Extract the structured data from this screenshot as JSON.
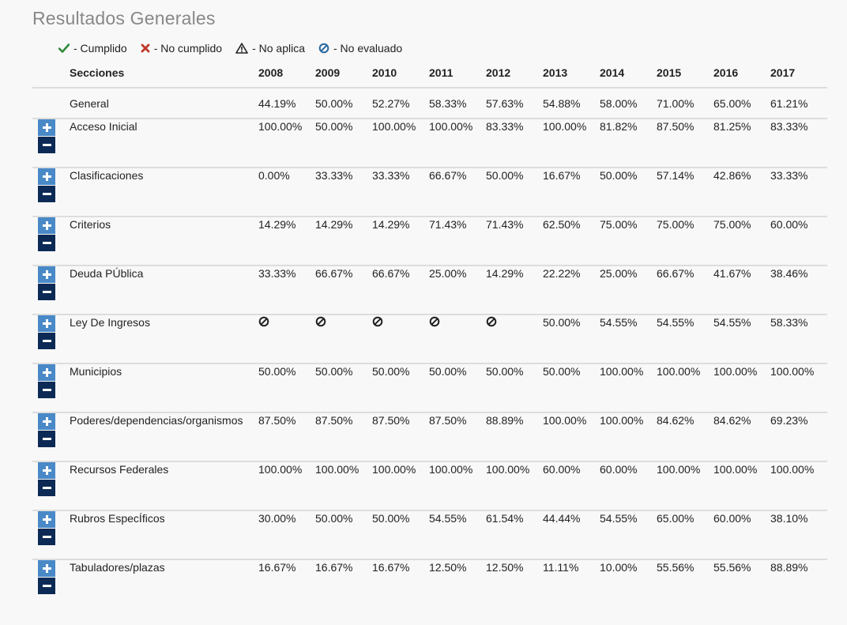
{
  "title": "Resultados Generales",
  "legend": [
    {
      "icon": "check-icon",
      "label": "- Cumplido",
      "color": "#2e8b3a"
    },
    {
      "icon": "cross-icon",
      "label": "- No cumplido",
      "color": "#c0392b"
    },
    {
      "icon": "warning-icon",
      "label": "- No aplica",
      "color": "#222222"
    },
    {
      "icon": "not-evaluated-icon",
      "label": "- No evaluado",
      "color": "#2a6a9e"
    }
  ],
  "table": {
    "section_header": "Secciones",
    "years": [
      "2008",
      "2009",
      "2010",
      "2011",
      "2012",
      "2013",
      "2014",
      "2015",
      "2016",
      "2017"
    ],
    "general": {
      "label": "General",
      "values": [
        "44.19%",
        "50.00%",
        "52.27%",
        "58.33%",
        "57.63%",
        "54.88%",
        "58.00%",
        "71.00%",
        "65.00%",
        "61.21%"
      ]
    },
    "rows": [
      {
        "label": "Acceso Inicial",
        "values": [
          "100.00%",
          "50.00%",
          "100.00%",
          "100.00%",
          "83.33%",
          "100.00%",
          "81.82%",
          "87.50%",
          "81.25%",
          "83.33%"
        ]
      },
      {
        "label": "Clasificaciones",
        "values": [
          "0.00%",
          "33.33%",
          "33.33%",
          "66.67%",
          "50.00%",
          "16.67%",
          "50.00%",
          "57.14%",
          "42.86%",
          "33.33%"
        ]
      },
      {
        "label": "Criterios",
        "values": [
          "14.29%",
          "14.29%",
          "14.29%",
          "71.43%",
          "71.43%",
          "62.50%",
          "75.00%",
          "75.00%",
          "75.00%",
          "60.00%"
        ]
      },
      {
        "label": "Deuda PÚblica",
        "values": [
          "33.33%",
          "66.67%",
          "66.67%",
          "25.00%",
          "14.29%",
          "22.22%",
          "25.00%",
          "66.67%",
          "41.67%",
          "38.46%"
        ]
      },
      {
        "label": "Ley De Ingresos",
        "values": [
          null,
          null,
          null,
          null,
          null,
          "50.00%",
          "54.55%",
          "54.55%",
          "54.55%",
          "58.33%"
        ]
      },
      {
        "label": "Municipios",
        "values": [
          "50.00%",
          "50.00%",
          "50.00%",
          "50.00%",
          "50.00%",
          "50.00%",
          "100.00%",
          "100.00%",
          "100.00%",
          "100.00%"
        ]
      },
      {
        "label": "Poderes/dependencias/organismos",
        "values": [
          "87.50%",
          "87.50%",
          "87.50%",
          "87.50%",
          "88.89%",
          "100.00%",
          "100.00%",
          "84.62%",
          "84.62%",
          "69.23%"
        ]
      },
      {
        "label": "Recursos Federales",
        "values": [
          "100.00%",
          "100.00%",
          "100.00%",
          "100.00%",
          "100.00%",
          "60.00%",
          "60.00%",
          "100.00%",
          "100.00%",
          "100.00%"
        ]
      },
      {
        "label": "Rubros EspecÍficos",
        "values": [
          "30.00%",
          "50.00%",
          "50.00%",
          "54.55%",
          "61.54%",
          "44.44%",
          "54.55%",
          "65.00%",
          "60.00%",
          "38.10%"
        ]
      },
      {
        "label": "Tabuladores/plazas",
        "values": [
          "16.67%",
          "16.67%",
          "16.67%",
          "12.50%",
          "12.50%",
          "11.11%",
          "10.00%",
          "55.56%",
          "55.56%",
          "88.89%"
        ]
      }
    ]
  }
}
